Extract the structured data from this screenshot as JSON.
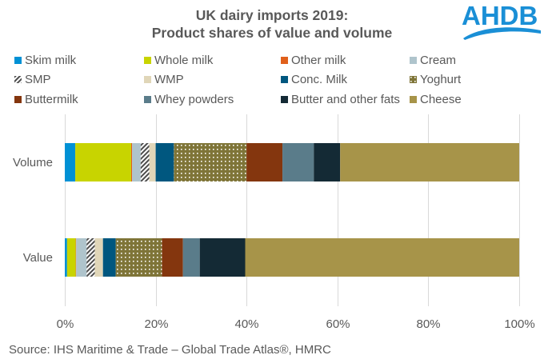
{
  "title_line1": "UK dairy imports 2019:",
  "title_line2": "Product shares of value and volume",
  "logo": {
    "text": "AHDB",
    "color": "#1a8fd6"
  },
  "source": "Source: IHS Maritime & Trade – Global Trade Atlas®, HMRC",
  "chart_data": {
    "type": "bar",
    "orientation": "horizontal",
    "stacked": "percent",
    "title": "UK dairy imports 2019: Product shares of value and volume",
    "xlabel": "",
    "ylabel": "",
    "xlim": [
      0,
      100
    ],
    "x_ticks": [
      "0%",
      "20%",
      "40%",
      "60%",
      "80%",
      "100%"
    ],
    "x_tick_values": [
      0,
      20,
      40,
      60,
      80,
      100
    ],
    "grid": "vertical",
    "legend_position": "top",
    "categories": [
      "Volume",
      "Value"
    ],
    "series": [
      {
        "name": "Skim milk",
        "color": "#0091d5",
        "pattern": "solid",
        "values": [
          2.3,
          0.5
        ]
      },
      {
        "name": "Whole milk",
        "color": "#c8d400",
        "pattern": "solid",
        "values": [
          12.3,
          1.9
        ]
      },
      {
        "name": "Other milk",
        "color": "#e0601b",
        "pattern": "solid",
        "values": [
          0.2,
          0.1
        ]
      },
      {
        "name": "Cream",
        "color": "#afc4cc",
        "pattern": "solid",
        "values": [
          1.9,
          2.3
        ]
      },
      {
        "name": "SMP",
        "color": "#4d4d4d",
        "pattern": "diagonal",
        "values": [
          1.9,
          1.8
        ]
      },
      {
        "name": "WMP",
        "color": "#e0d6b8",
        "pattern": "solid",
        "values": [
          1.4,
          1.8
        ]
      },
      {
        "name": "Conc. Milk",
        "color": "#00577f",
        "pattern": "solid",
        "values": [
          4.0,
          2.8
        ]
      },
      {
        "name": "Yoghurt",
        "color": "#7f7538",
        "pattern": "dots",
        "values": [
          16.0,
          10.2
        ]
      },
      {
        "name": "Buttermilk",
        "color": "#84360e",
        "pattern": "solid",
        "values": [
          7.9,
          4.6
        ]
      },
      {
        "name": "Whey powders",
        "color": "#5a7c8a",
        "pattern": "solid",
        "values": [
          6.9,
          3.7
        ]
      },
      {
        "name": "Butter and other fats",
        "color": "#142a35",
        "pattern": "solid",
        "values": [
          5.8,
          10.0
        ]
      },
      {
        "name": "Cheese",
        "color": "#a79449",
        "pattern": "solid",
        "values": [
          39.4,
          60.3
        ]
      }
    ]
  }
}
